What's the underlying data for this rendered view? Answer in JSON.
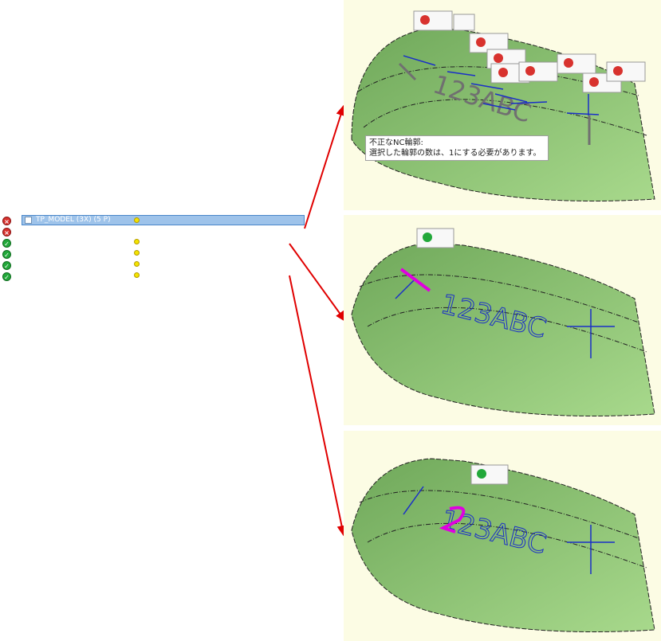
{
  "tree": {
    "row_label": "TP_MODEL (3X) (5 P)",
    "rows": [
      {
        "status": "error"
      },
      {
        "status": "error"
      },
      {
        "status": "ok"
      },
      {
        "status": "ok"
      },
      {
        "status": "ok"
      },
      {
        "status": "ok"
      }
    ]
  },
  "views": [
    {
      "label_text": "123ABC",
      "state": "invalid"
    },
    {
      "label_text": "123ABC",
      "state": "valid"
    },
    {
      "label_text": "123ABC",
      "state": "valid"
    }
  ],
  "tooltip": {
    "line1": "不正なNC輪郭:",
    "line2": "選択した輪郭の数は、1にする必要があります。"
  },
  "colors": {
    "surface": "#86c070",
    "highlight": "#e000e0",
    "curve": "#1a2fc8",
    "arrow": "#e00000",
    "panel_bg": "#fcfce4"
  },
  "icons": [
    "error-icon",
    "check-icon",
    "close-icon",
    "arrow-icon"
  ]
}
